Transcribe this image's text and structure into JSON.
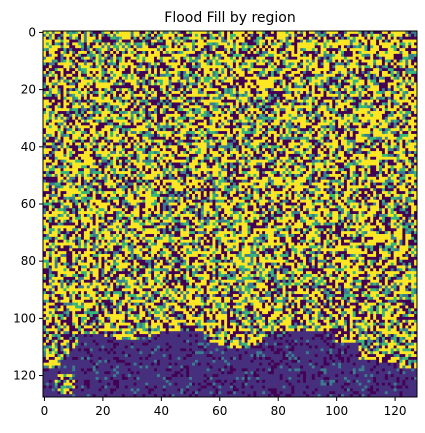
{
  "chart_data": {
    "type": "heatmap",
    "title": "Flood Fill by region",
    "xlabel": "",
    "ylabel": "",
    "xlim": [
      0,
      127
    ],
    "ylim": [
      127,
      0
    ],
    "y_axis_inverted": true,
    "xticks": [
      "0",
      "20",
      "40",
      "60",
      "80",
      "100",
      "120"
    ],
    "yticks": [
      "0",
      "20",
      "40",
      "60",
      "80",
      "100",
      "120"
    ],
    "grid": false,
    "legend": "none",
    "colormap": "viridis",
    "rows": 128,
    "cols": 128,
    "pattern_description": "Dense binary-like noise pattern; a large dark region (flooded) occupies bottom-left to bottom-right near rows 105-127",
    "colors": {
      "dark": "#440154",
      "dark_region": "#46307e",
      "teal": "#3b7c8e",
      "green": "#35b779",
      "yellow": "#fde725"
    }
  }
}
